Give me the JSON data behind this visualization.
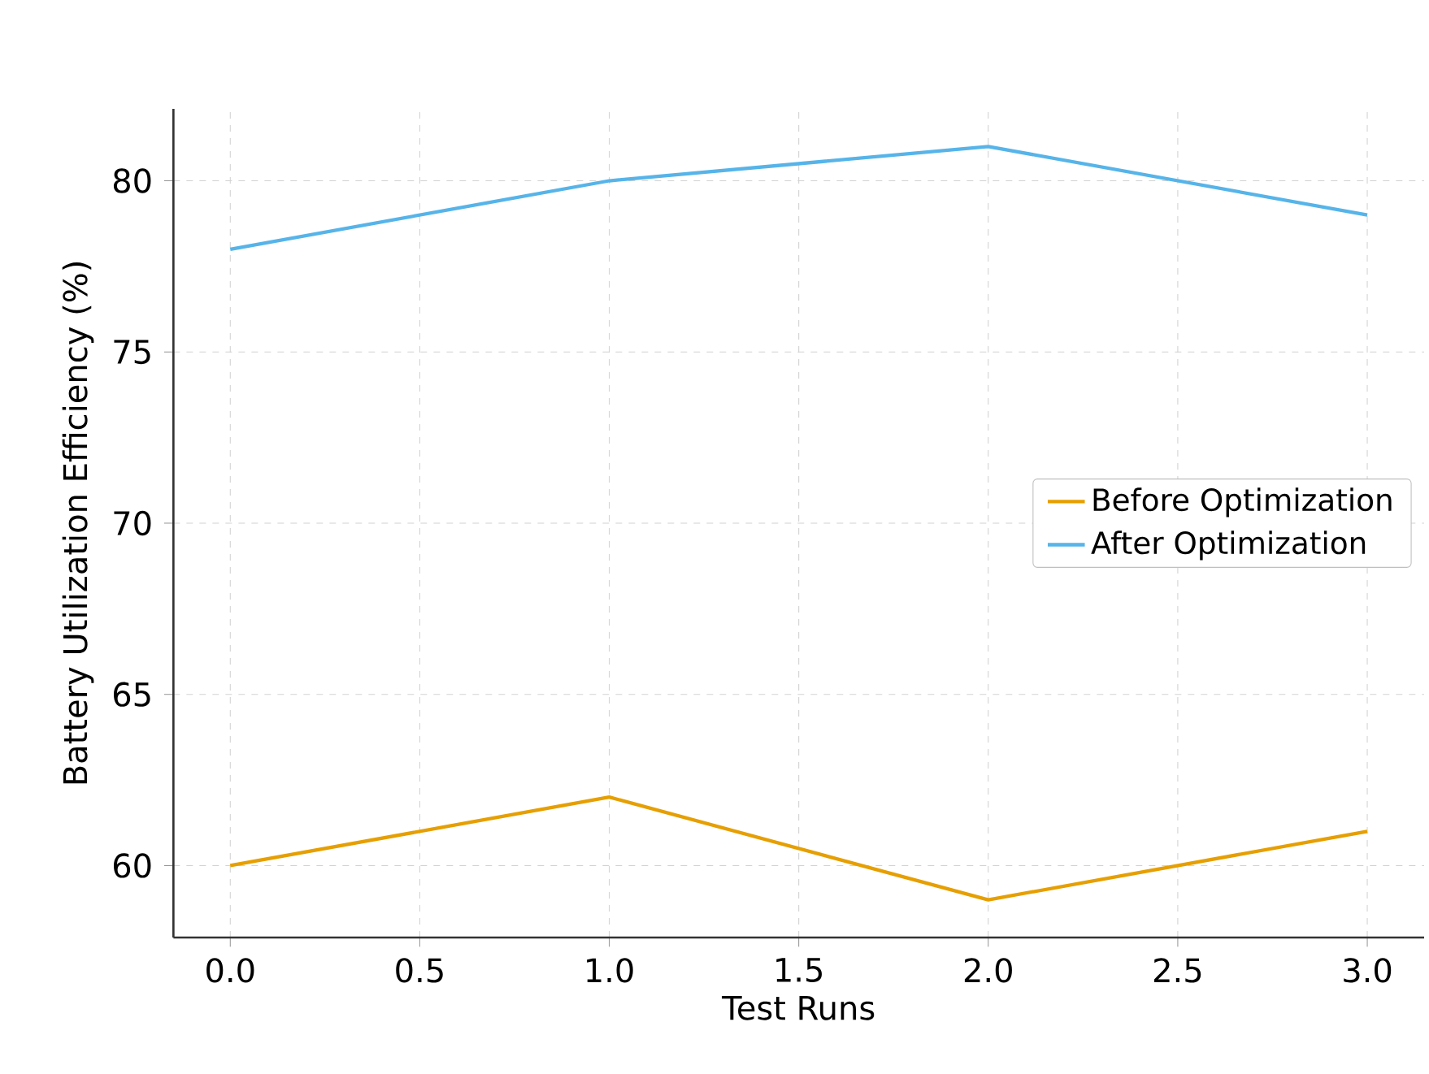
{
  "chart_data": {
    "type": "line",
    "xlabel": "Test Runs",
    "ylabel": "Battery Utilization Efficiency (%)",
    "x": [
      0,
      1,
      2,
      3
    ],
    "series": [
      {
        "name": "Before Optimization",
        "color": "#e69f00",
        "values": [
          60,
          62,
          59,
          61
        ]
      },
      {
        "name": "After Optimization",
        "color": "#56b4e9",
        "values": [
          78,
          80,
          81,
          79
        ]
      }
    ],
    "xlim": [
      -0.15,
      3.15
    ],
    "ylim": [
      57.9,
      82.1
    ],
    "xticks": [
      {
        "value": 0,
        "label": "0.0"
      },
      {
        "value": 0.5,
        "label": "0.5"
      },
      {
        "value": 1,
        "label": "1.0"
      },
      {
        "value": 1.5,
        "label": "1.5"
      },
      {
        "value": 2,
        "label": "2.0"
      },
      {
        "value": 2.5,
        "label": "2.5"
      },
      {
        "value": 3,
        "label": "3.0"
      }
    ],
    "yticks": [
      60,
      65,
      70,
      75,
      80
    ],
    "grid": true,
    "legend": "right",
    "marker": "none",
    "line_style": "solid"
  }
}
